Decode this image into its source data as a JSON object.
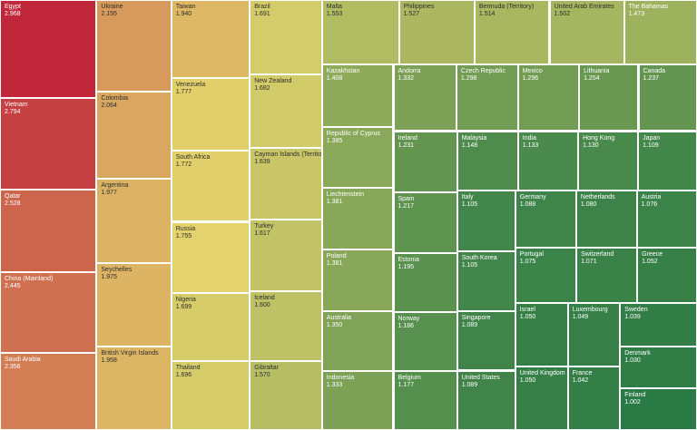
{
  "chart_data": {
    "type": "treemap",
    "title": "",
    "color_scale": {
      "high": "#c0273b",
      "mid": "#e3d36d",
      "low": "#2a7a45"
    },
    "items": [
      {
        "name": "Egypt",
        "value": 2.968
      },
      {
        "name": "Vietnam",
        "value": 2.794
      },
      {
        "name": "Qatar",
        "value": 2.528
      },
      {
        "name": "China (Mainland)",
        "value": 2.445
      },
      {
        "name": "Saudi Arabia",
        "value": 2.356
      },
      {
        "name": "Ukraine",
        "value": 2.155
      },
      {
        "name": "Colombia",
        "value": 2.064
      },
      {
        "name": "Argentina",
        "value": 1.977
      },
      {
        "name": "Seychelles",
        "value": 1.975
      },
      {
        "name": "British Virgin Islands",
        "value": 1.958
      },
      {
        "name": "Taiwan",
        "value": 1.94
      },
      {
        "name": "Venezuela",
        "value": 1.777
      },
      {
        "name": "South Africa",
        "value": 1.772
      },
      {
        "name": "Russia",
        "value": 1.755
      },
      {
        "name": "Nigeria",
        "value": 1.699
      },
      {
        "name": "Thailand",
        "value": 1.696
      },
      {
        "name": "Brazil",
        "value": 1.691
      },
      {
        "name": "New Zealand",
        "value": 1.682
      },
      {
        "name": "Cayman Islands (Territory)",
        "value": 1.639
      },
      {
        "name": "Turkey",
        "value": 1.617
      },
      {
        "name": "Iceland",
        "value": 1.6
      },
      {
        "name": "Gibraltar",
        "value": 1.57
      },
      {
        "name": "Malta",
        "value": 1.553
      },
      {
        "name": "Philippines",
        "value": 1.527
      },
      {
        "name": "Bermuda (Territory)",
        "value": 1.514
      },
      {
        "name": "United Arab Emirates",
        "value": 1.502
      },
      {
        "name": "The Bahamas",
        "value": 1.473
      },
      {
        "name": "Kazakhstan",
        "value": 1.408
      },
      {
        "name": "Republic of Cyprus",
        "value": 1.385
      },
      {
        "name": "Liechtenstein",
        "value": 1.381
      },
      {
        "name": "Poland",
        "value": 1.381
      },
      {
        "name": "Australia",
        "value": 1.35
      },
      {
        "name": "Indonesia",
        "value": 1.333
      },
      {
        "name": "Andorra",
        "value": 1.332
      },
      {
        "name": "Czech Republic",
        "value": 1.298
      },
      {
        "name": "Mexico",
        "value": 1.296
      },
      {
        "name": "Lithuania",
        "value": 1.254
      },
      {
        "name": "Canada",
        "value": 1.237
      },
      {
        "name": "Ireland",
        "value": 1.231
      },
      {
        "name": "Spain",
        "value": 1.217
      },
      {
        "name": "Estonia",
        "value": 1.195
      },
      {
        "name": "Norway",
        "value": 1.186
      },
      {
        "name": "Belgium",
        "value": 1.177
      },
      {
        "name": "Malaysia",
        "value": 1.148
      },
      {
        "name": "India",
        "value": 1.133
      },
      {
        "name": "Hong Kong",
        "value": 1.13
      },
      {
        "name": "Japan",
        "value": 1.109
      },
      {
        "name": "Italy",
        "value": 1.105
      },
      {
        "name": "South Korea",
        "value": 1.105
      },
      {
        "name": "Singapore",
        "value": 1.089
      },
      {
        "name": "United States",
        "value": 1.089
      },
      {
        "name": "Germany",
        "value": 1.088
      },
      {
        "name": "Netherlands",
        "value": 1.08
      },
      {
        "name": "Austria",
        "value": 1.076
      },
      {
        "name": "Portugal",
        "value": 1.075
      },
      {
        "name": "Switzerland",
        "value": 1.071
      },
      {
        "name": "Greece",
        "value": 1.052
      },
      {
        "name": "Israel",
        "value": 1.05
      },
      {
        "name": "United Kingdom",
        "value": 1.05
      },
      {
        "name": "Luxembourg",
        "value": 1.049
      },
      {
        "name": "Sweden",
        "value": 1.039
      },
      {
        "name": "France",
        "value": 1.042
      },
      {
        "name": "Denmark",
        "value": 1.03
      },
      {
        "name": "Finland",
        "value": 1.002
      }
    ]
  }
}
